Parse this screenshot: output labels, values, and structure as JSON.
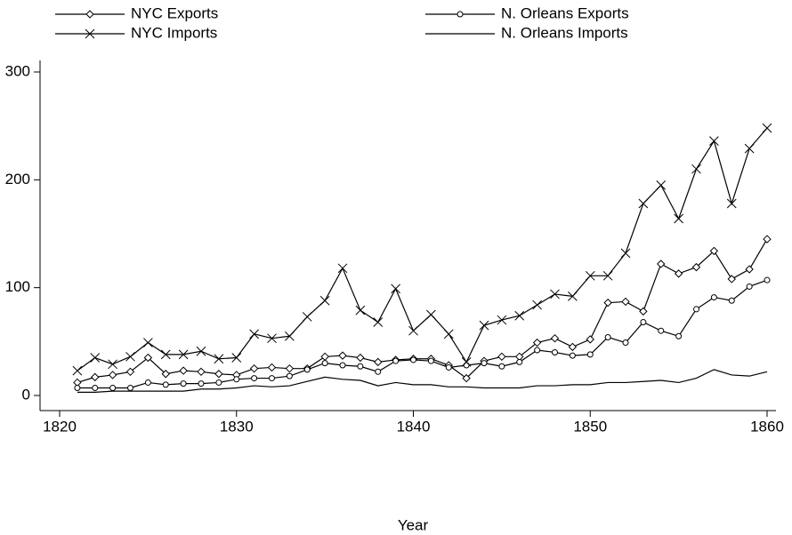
{
  "chart_data": {
    "type": "line",
    "x_label": "Year",
    "x": [
      1821,
      1822,
      1823,
      1824,
      1825,
      1826,
      1827,
      1828,
      1829,
      1830,
      1831,
      1832,
      1833,
      1834,
      1835,
      1836,
      1837,
      1838,
      1839,
      1840,
      1841,
      1842,
      1843,
      1844,
      1845,
      1846,
      1847,
      1848,
      1849,
      1850,
      1851,
      1852,
      1853,
      1854,
      1855,
      1856,
      1857,
      1858,
      1859,
      1860
    ],
    "series": [
      {
        "name": "NYC Exports",
        "color": "#000000",
        "marker": "diamond",
        "values": [
          12,
          17,
          19,
          22,
          35,
          20,
          23,
          22,
          20,
          19,
          25,
          26,
          25,
          25,
          36,
          37,
          35,
          31,
          33,
          34,
          34,
          28,
          16,
          32,
          36,
          36,
          49,
          53,
          45,
          52,
          86,
          87,
          78,
          122,
          113,
          119,
          134,
          108,
          117,
          145
        ]
      },
      {
        "name": "N. Orleans Exports",
        "color": "#000000",
        "marker": "circle",
        "values": [
          7,
          7,
          7,
          7,
          12,
          10,
          11,
          11,
          12,
          15,
          16,
          16,
          18,
          24,
          30,
          28,
          27,
          22,
          32,
          33,
          32,
          26,
          28,
          30,
          27,
          31,
          42,
          40,
          37,
          38,
          54,
          49,
          68,
          60,
          55,
          80,
          91,
          88,
          101,
          107
        ]
      },
      {
        "name": "NYC Imports",
        "color": "#000000",
        "marker": "x",
        "values": [
          23,
          35,
          29,
          36,
          49,
          38,
          38,
          41,
          34,
          35,
          57,
          53,
          55,
          73,
          88,
          118,
          79,
          68,
          99,
          60,
          75,
          57,
          31,
          65,
          70,
          74,
          84,
          94,
          92,
          111,
          111,
          132,
          178,
          195,
          164,
          210,
          236,
          178,
          229,
          248
        ]
      },
      {
        "name": "N. Orleans Imports",
        "color": "#000000",
        "marker": "none",
        "values": [
          3,
          3,
          4,
          4,
          4,
          4,
          4,
          6,
          6,
          7,
          9,
          8,
          9,
          13,
          17,
          15,
          14,
          9,
          12,
          10,
          10,
          8,
          8,
          7,
          7,
          7,
          9,
          9,
          10,
          10,
          12,
          12,
          13,
          14,
          12,
          16,
          24,
          19,
          18,
          22
        ]
      }
    ],
    "xlim": [
      1820,
      1860
    ],
    "xticks": [
      1820,
      1830,
      1840,
      1850,
      1860
    ],
    "ylim": [
      0,
      300
    ],
    "yticks": [
      0,
      100,
      200,
      300
    ],
    "legend": "top"
  }
}
